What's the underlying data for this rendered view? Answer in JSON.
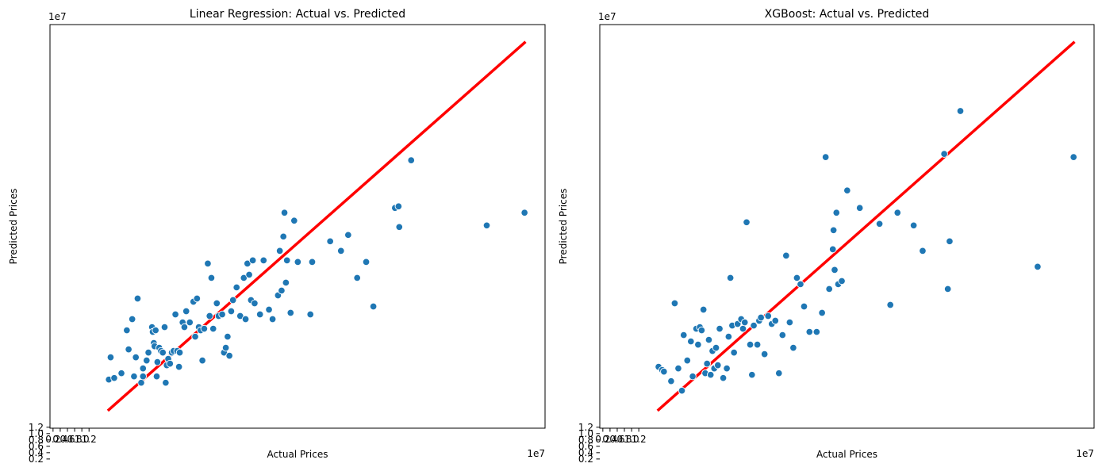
{
  "chart_data": [
    {
      "type": "scatter",
      "title": "Linear Regression: Actual vs. Predicted",
      "xlabel": "Actual Prices",
      "ylabel": "Predicted Prices",
      "x_offset_label": "1e7",
      "y_offset_label": "1e7",
      "xlim": [
        0.115,
        13.87
      ],
      "ylim": [
        1.17,
        13.87
      ],
      "xticks": [
        0.2,
        0.4,
        0.6,
        0.8,
        1.0,
        1.2
      ],
      "xtick_labels": [
        "0.2",
        "0.4",
        "0.6",
        "0.8",
        "1.0",
        "1.2"
      ],
      "yticks": [
        0.2,
        0.4,
        0.6,
        0.8,
        1.0,
        1.2
      ],
      "ytick_labels": [
        "0.2",
        "0.4",
        "0.6",
        "0.8",
        "1.0",
        "1.2"
      ],
      "grid": false,
      "point_color": "#1f77b4",
      "line_color": "#ff0000",
      "reference_line": {
        "x": [
          1.75,
          13.3
        ],
        "y": [
          1.75,
          13.3
        ]
      },
      "series": [
        {
          "x": [
            1.75,
            1.8,
            1.9,
            2.1,
            2.25,
            2.3,
            2.4,
            2.45,
            2.5,
            2.55,
            2.65,
            2.7,
            2.7,
            2.8,
            2.85,
            2.95,
            2.97,
            3.0,
            3.02,
            3.05,
            3.08,
            3.1,
            3.15,
            3.2,
            3.25,
            3.3,
            3.33,
            3.36,
            3.4,
            3.45,
            3.5,
            3.55,
            3.6,
            3.65,
            3.7,
            3.72,
            3.8,
            3.85,
            3.9,
            4.0,
            4.1,
            4.15,
            4.2,
            4.25,
            4.3,
            4.35,
            4.4,
            4.5,
            4.55,
            4.6,
            4.65,
            4.75,
            4.8,
            4.9,
            4.95,
            5.0,
            5.05,
            5.1,
            5.15,
            5.2,
            5.3,
            5.4,
            5.5,
            5.55,
            5.6,
            5.65,
            5.7,
            5.75,
            5.8,
            5.95,
            6.05,
            6.2,
            6.3,
            6.45,
            6.5,
            6.55,
            6.6,
            6.63,
            6.67,
            6.7,
            6.8,
            6.9,
            7.0,
            7.35,
            7.4,
            7.9,
            8.2,
            8.4,
            8.65,
            8.9,
            9.1,
            9.7,
            9.8,
            9.82,
            10.15,
            12.25,
            13.3
          ],
          "y": [
            2.7,
            3.4,
            2.75,
            2.9,
            4.25,
            3.65,
            4.6,
            2.8,
            3.4,
            5.25,
            2.6,
            2.8,
            3.05,
            3.3,
            3.55,
            4.35,
            4.2,
            3.85,
            3.75,
            4.25,
            2.8,
            3.25,
            3.7,
            3.6,
            3.55,
            4.35,
            2.6,
            3.15,
            3.35,
            3.2,
            3.55,
            3.6,
            4.75,
            3.6,
            3.1,
            3.55,
            4.5,
            4.35,
            4.85,
            4.5,
            5.15,
            4.05,
            5.25,
            4.35,
            4.25,
            3.3,
            4.3,
            6.35,
            4.7,
            5.9,
            4.3,
            5.1,
            4.7,
            4.75,
            3.55,
            3.7,
            4.05,
            3.45,
            4.85,
            5.2,
            5.6,
            4.7,
            5.9,
            4.6,
            6.35,
            6.0,
            5.2,
            6.45,
            5.1,
            4.75,
            6.45,
            4.9,
            4.6,
            5.35,
            6.75,
            5.5,
            7.2,
            7.95,
            5.75,
            6.45,
            4.8,
            7.7,
            6.4,
            4.75,
            6.4,
            7.05,
            6.75,
            7.25,
            5.9,
            6.4,
            5.0,
            8.1,
            8.15,
            7.5,
            9.6,
            7.55,
            7.95
          ]
        }
      ]
    },
    {
      "type": "scatter",
      "title": "XGBoost: Actual vs. Predicted",
      "xlabel": "Actual Prices",
      "ylabel": "Predicted Prices",
      "x_offset_label": "1e7",
      "y_offset_label": "1e7",
      "xlim": [
        0.115,
        13.87
      ],
      "ylim": [
        1.17,
        13.87
      ],
      "xticks": [
        0.2,
        0.4,
        0.6,
        0.8,
        1.0,
        1.2
      ],
      "xtick_labels": [
        "0.2",
        "0.4",
        "0.6",
        "0.8",
        "1.0",
        "1.2"
      ],
      "yticks": [
        0.2,
        0.4,
        0.6,
        0.8,
        1.0,
        1.2
      ],
      "ytick_labels": [
        "0.2",
        "0.4",
        "0.6",
        "0.8",
        "1.0",
        "1.2"
      ],
      "grid": false,
      "point_color": "#1f77b4",
      "line_color": "#ff0000",
      "reference_line": {
        "x": [
          1.75,
          13.3
        ],
        "y": [
          1.75,
          13.3
        ]
      },
      "series": [
        {
          "x": [
            1.75,
            1.85,
            1.9,
            2.1,
            2.2,
            2.3,
            2.4,
            2.45,
            2.55,
            2.65,
            2.7,
            2.8,
            2.85,
            2.9,
            2.95,
            3.0,
            3.05,
            3.1,
            3.15,
            3.2,
            3.25,
            3.3,
            3.35,
            3.4,
            3.45,
            3.55,
            3.65,
            3.7,
            3.75,
            3.8,
            3.85,
            3.95,
            4.05,
            4.1,
            4.15,
            4.2,
            4.3,
            4.35,
            4.4,
            4.5,
            4.55,
            4.6,
            4.7,
            4.8,
            4.9,
            5.0,
            5.1,
            5.2,
            5.3,
            5.4,
            5.5,
            5.6,
            5.7,
            5.8,
            5.95,
            6.15,
            6.3,
            6.4,
            6.5,
            6.6,
            6.62,
            6.65,
            6.7,
            6.75,
            6.85,
            7.0,
            7.35,
            7.9,
            8.2,
            8.4,
            8.85,
            9.1,
            9.7,
            9.8,
            9.85,
            10.15,
            12.3,
            13.3
          ],
          "y": [
            3.1,
            3.0,
            2.95,
            2.65,
            5.1,
            3.05,
            2.35,
            4.1,
            3.3,
            3.9,
            2.8,
            4.3,
            3.8,
            4.35,
            4.25,
            4.9,
            2.9,
            3.2,
            3.95,
            2.85,
            3.6,
            3.05,
            3.7,
            3.15,
            4.3,
            2.75,
            3.05,
            4.05,
            5.9,
            4.4,
            3.55,
            4.45,
            4.6,
            4.3,
            4.5,
            7.65,
            3.8,
            2.85,
            4.4,
            3.8,
            4.55,
            4.65,
            3.5,
            4.7,
            4.45,
            4.55,
            2.9,
            4.1,
            6.6,
            4.5,
            3.7,
            5.9,
            5.7,
            5.0,
            4.2,
            4.2,
            4.8,
            9.7,
            5.55,
            6.8,
            7.4,
            6.15,
            7.95,
            5.7,
            5.8,
            8.65,
            8.1,
            7.6,
            5.05,
            7.95,
            7.55,
            6.75,
            9.8,
            5.55,
            7.05,
            11.15,
            6.25,
            9.7
          ]
        }
      ]
    }
  ]
}
